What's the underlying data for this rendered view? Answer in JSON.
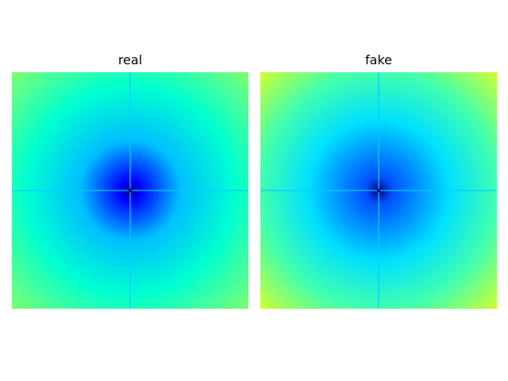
{
  "figure": {
    "panels": [
      {
        "id": "real",
        "title": "real",
        "colors": {
          "center": "#000080",
          "inner": "#0000ff",
          "mid": "#00bfff",
          "outer": "#00ffd0",
          "corner": "#80ff70",
          "axis_line": "#00ccff"
        }
      },
      {
        "id": "fake",
        "title": "fake",
        "colors": {
          "center": "#000080",
          "inner": "#0050ff",
          "mid": "#00e0ff",
          "outer": "#40ffb0",
          "corner": "#d0ff30",
          "axis_line": "#00ccff"
        }
      }
    ]
  }
}
